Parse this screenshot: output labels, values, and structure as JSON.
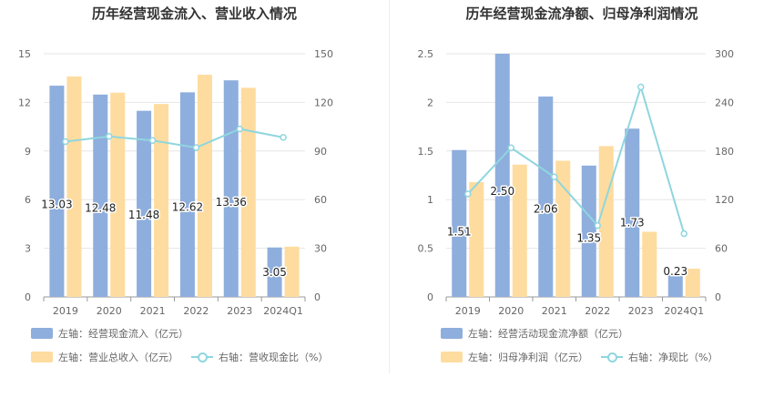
{
  "chart_data": [
    {
      "type": "bar",
      "title": "历年经营现金流入、营业收入情况",
      "categories": [
        "2019",
        "2020",
        "2021",
        "2022",
        "2023",
        "2024Q1"
      ],
      "series": [
        {
          "name": "左轴：经营现金流入（亿元）",
          "axis": "left",
          "type": "bar",
          "color": "#8eaedd",
          "values": [
            13.03,
            12.48,
            11.48,
            12.62,
            13.36,
            3.05
          ],
          "labels": [
            "13.03",
            "12.48",
            "11.48",
            "12.62",
            "13.36",
            "3.05"
          ]
        },
        {
          "name": "左轴：营业总收入（亿元）",
          "axis": "left",
          "type": "bar",
          "color": "#fedc9f",
          "values": [
            13.6,
            12.6,
            11.9,
            13.7,
            12.9,
            3.1
          ]
        },
        {
          "name": "右轴：营收现金比（%）",
          "axis": "right",
          "type": "line",
          "color": "#8fd6df",
          "values": [
            95.8,
            99.0,
            96.5,
            92.1,
            103.6,
            98.4
          ]
        }
      ],
      "y_left": {
        "min": 0,
        "max": 15,
        "ticks": [
          "0",
          "3",
          "6",
          "9",
          "12",
          "15"
        ]
      },
      "y_right": {
        "min": 0,
        "max": 150,
        "ticks": [
          "0",
          "30",
          "60",
          "90",
          "120",
          "150"
        ]
      },
      "legend": {
        "rows": [
          [
            "左轴：经营现金流入（亿元）"
          ],
          [
            "左轴：营业总收入（亿元）",
            "右轴：营收现金比（%）"
          ]
        ]
      }
    },
    {
      "type": "bar",
      "title": "历年经营现金流净额、归母净利润情况",
      "categories": [
        "2019",
        "2020",
        "2021",
        "2022",
        "2023",
        "2024Q1"
      ],
      "series": [
        {
          "name": "左轴：经营活动现金流净额（亿元）",
          "axis": "left",
          "type": "bar",
          "color": "#8eaedd",
          "values": [
            1.51,
            2.5,
            2.06,
            1.35,
            1.73,
            0.23
          ],
          "labels": [
            "1.51",
            "2.50",
            "2.06",
            "1.35",
            "1.73",
            "0.23"
          ]
        },
        {
          "name": "左轴：归母净利润（亿元）",
          "axis": "left",
          "type": "bar",
          "color": "#fedc9f",
          "values": [
            1.18,
            1.36,
            1.4,
            1.55,
            0.67,
            0.29
          ]
        },
        {
          "name": "右轴：净现比（%）",
          "axis": "right",
          "type": "line",
          "color": "#8fd6df",
          "values": [
            127,
            184,
            148,
            88,
            259,
            78
          ]
        }
      ],
      "y_left": {
        "min": 0,
        "max": 2.5,
        "ticks": [
          "0",
          "0.5",
          "1",
          "1.5",
          "2",
          "2.5"
        ]
      },
      "y_right": {
        "min": 0,
        "max": 300,
        "ticks": [
          "0",
          "60",
          "120",
          "180",
          "240",
          "300"
        ]
      },
      "legend": {
        "rows": [
          [
            "左轴：经营活动现金流净额（亿元）"
          ],
          [
            "左轴：归母净利润（亿元）",
            "右轴：净现比（%）"
          ]
        ]
      }
    }
  ]
}
